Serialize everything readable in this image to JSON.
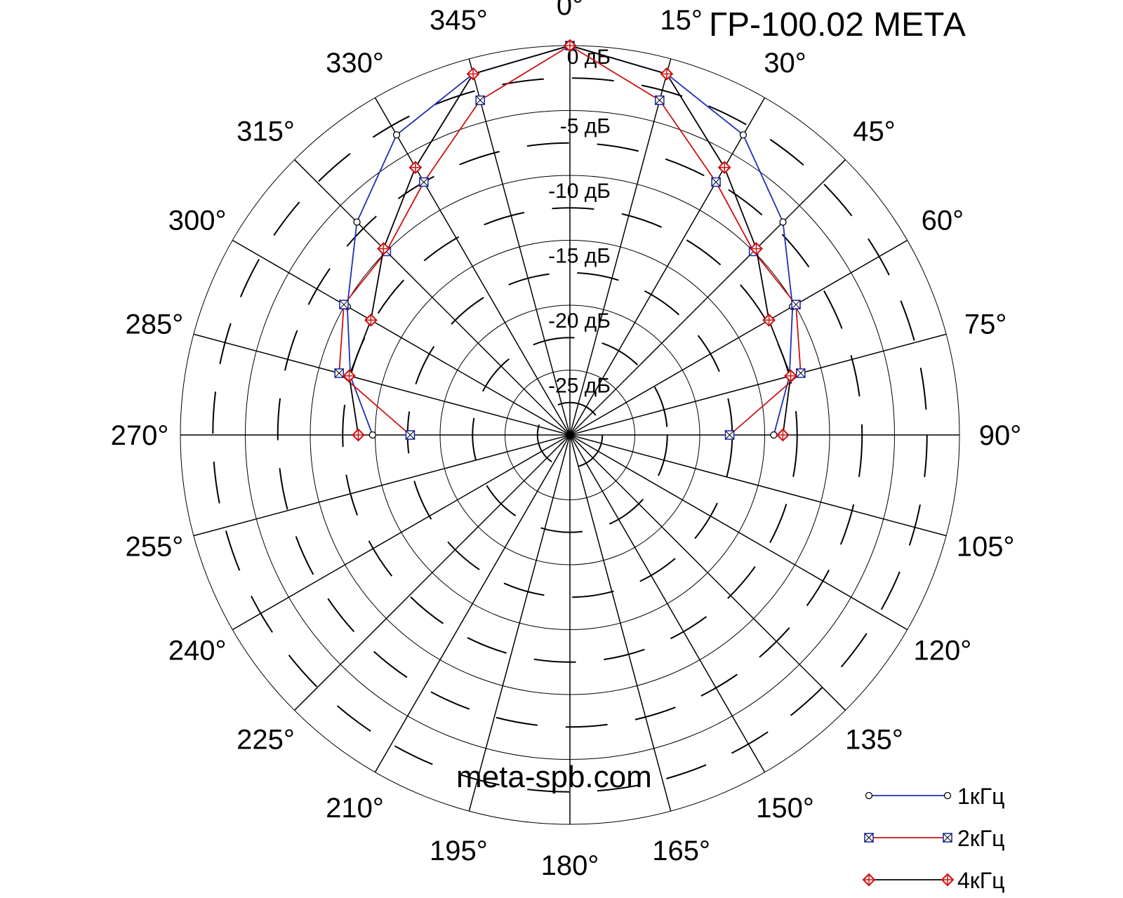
{
  "chart_data": {
    "type": "polar-line",
    "title": "ГР-100.02 МЕТА",
    "watermark": "meta-spb.com",
    "angle_labels": [
      "0°",
      "15°",
      "30°",
      "45°",
      "60°",
      "75°",
      "90°",
      "105°",
      "120°",
      "135°",
      "150°",
      "165°",
      "180°",
      "195°",
      "210°",
      "225°",
      "240°",
      "255°",
      "270°",
      "285°",
      "300°",
      "315°",
      "330°",
      "345°"
    ],
    "ring_labels": [
      "0 дБ",
      "-5 дБ",
      "-10 дБ",
      "-15 дБ",
      "-20 дБ",
      "-25 дБ"
    ],
    "rlim_db": [
      -30,
      0
    ],
    "grid": true,
    "legend_position": "bottom-right",
    "angles_deg": [
      270,
      285,
      300,
      315,
      330,
      345,
      0,
      15,
      30,
      45,
      60,
      75,
      90
    ],
    "series": [
      {
        "name": "1кГц",
        "color": "#1f2fb0",
        "marker": "circle",
        "values": [
          -14.8,
          -12.5,
          -10.2,
          -6.8,
          -3.3,
          -1.2,
          0,
          -1.2,
          -3.3,
          -6.8,
          -10.2,
          -12.5,
          -14.3
        ]
      },
      {
        "name": "2кГц",
        "color": "#cc1111",
        "marker": "square-x",
        "values": [
          -17.7,
          -11.6,
          -9.9,
          -10.0,
          -7.5,
          -3.3,
          0,
          -3.3,
          -7.5,
          -10.0,
          -9.9,
          -11.6,
          -17.7
        ]
      },
      {
        "name": "4кГц",
        "color": "#000000",
        "marker": "diamond-plus",
        "values": [
          -13.7,
          -12.4,
          -12.3,
          -9.7,
          -6.2,
          -1.2,
          0,
          -1.2,
          -6.2,
          -9.7,
          -12.3,
          -12.4,
          -13.6
        ]
      }
    ]
  }
}
